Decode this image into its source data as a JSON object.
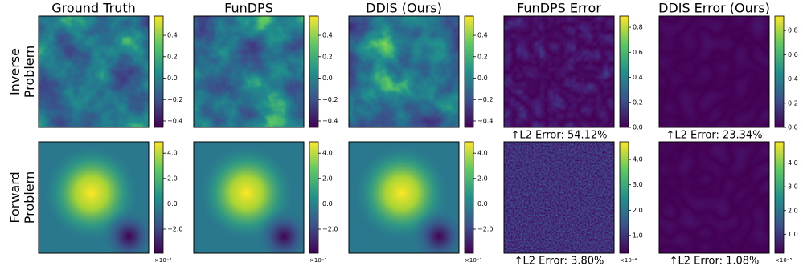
{
  "columns": [
    "Ground Truth",
    "FunDPS",
    "DDIS (Ours)",
    "FunDPS Error",
    "DDIS Error (Ours)"
  ],
  "rows": [
    {
      "label": "Inverse\nProblem",
      "cells": [
        {
          "colorbar": {
            "lim": [
              -0.46,
              0.58
            ],
            "ticks": [
              {
                "value": -0.4,
                "label": "−0.4"
              },
              {
                "value": -0.2,
                "label": "−0.2"
              },
              {
                "value": 0,
                "label": "0.0"
              },
              {
                "value": 0.2,
                "label": "0.2"
              },
              {
                "value": 0.4,
                "label": "0.4"
              }
            ]
          }
        },
        {
          "colorbar": {
            "lim": [
              -0.46,
              0.58
            ],
            "ticks": [
              {
                "value": -0.4,
                "label": "−0.4"
              },
              {
                "value": -0.2,
                "label": "−0.2"
              },
              {
                "value": 0,
                "label": "0.0"
              },
              {
                "value": 0.2,
                "label": "0.2"
              },
              {
                "value": 0.4,
                "label": "0.4"
              }
            ]
          }
        },
        {
          "colorbar": {
            "lim": [
              -0.46,
              0.58
            ],
            "ticks": [
              {
                "value": -0.4,
                "label": "−0.4"
              },
              {
                "value": -0.2,
                "label": "−0.2"
              },
              {
                "value": 0,
                "label": "0.0"
              },
              {
                "value": 0.2,
                "label": "0.2"
              },
              {
                "value": 0.4,
                "label": "0.4"
              }
            ]
          }
        },
        {
          "colorbar": {
            "lim": [
              0,
              0.89
            ],
            "ticks": [
              {
                "value": 0,
                "label": "0.0"
              },
              {
                "value": 0.2,
                "label": "0.2"
              },
              {
                "value": 0.4,
                "label": "0.4"
              },
              {
                "value": 0.6,
                "label": "0.6"
              },
              {
                "value": 0.8,
                "label": "0.8"
              }
            ]
          },
          "error": "↑L2 Error: 54.12%"
        },
        {
          "colorbar": {
            "lim": [
              0,
              0.92
            ],
            "ticks": [
              {
                "value": 0,
                "label": "0.0"
              },
              {
                "value": 0.2,
                "label": "0.2"
              },
              {
                "value": 0.4,
                "label": "0.4"
              },
              {
                "value": 0.6,
                "label": "0.6"
              },
              {
                "value": 0.8,
                "label": "0.8"
              }
            ]
          },
          "error": "↑L2 Error: 23.34%"
        }
      ]
    },
    {
      "label": "Forward\nProblem",
      "cells": [
        {
          "colorbar": {
            "lim": [
              -3.9,
              4.9
            ],
            "ticks": [
              {
                "value": -2,
                "label": "−2.0"
              },
              {
                "value": 0,
                "label": "0.0"
              },
              {
                "value": 2,
                "label": "2.0"
              },
              {
                "value": 4,
                "label": "4.0"
              }
            ],
            "offset": "×10⁻³"
          }
        },
        {
          "colorbar": {
            "lim": [
              -3.9,
              4.9
            ],
            "ticks": [
              {
                "value": -2,
                "label": "−2.0"
              },
              {
                "value": 0,
                "label": "0.0"
              },
              {
                "value": 2,
                "label": "2.0"
              },
              {
                "value": 4,
                "label": "4.0"
              }
            ],
            "offset": "×10⁻³"
          }
        },
        {
          "colorbar": {
            "lim": [
              -3.9,
              4.9
            ],
            "ticks": [
              {
                "value": -2,
                "label": "−2.0"
              },
              {
                "value": 0,
                "label": "0.0"
              },
              {
                "value": 2,
                "label": "2.0"
              },
              {
                "value": 4,
                "label": "4.0"
              }
            ],
            "offset": "×10⁻³"
          }
        },
        {
          "colorbar": {
            "lim": [
              0.3,
              4.7
            ],
            "ticks": [
              {
                "value": 1,
                "label": "1.0"
              },
              {
                "value": 2,
                "label": "2.0"
              },
              {
                "value": 3,
                "label": "3.0"
              },
              {
                "value": 4,
                "label": "4.0"
              }
            ],
            "offset": "×10⁻⁴"
          },
          "error": "↑L2 Error: 3.80%"
        },
        {
          "colorbar": {
            "lim": [
              0.2,
              4.9
            ],
            "ticks": [
              {
                "value": 1,
                "label": "1.0"
              },
              {
                "value": 2,
                "label": "2.0"
              },
              {
                "value": 3,
                "label": "3.0"
              },
              {
                "value": 4,
                "label": "4.0"
              }
            ],
            "offset": "×10⁻⁵"
          },
          "error": "↑L2 Error: 1.08%"
        }
      ]
    }
  ]
}
